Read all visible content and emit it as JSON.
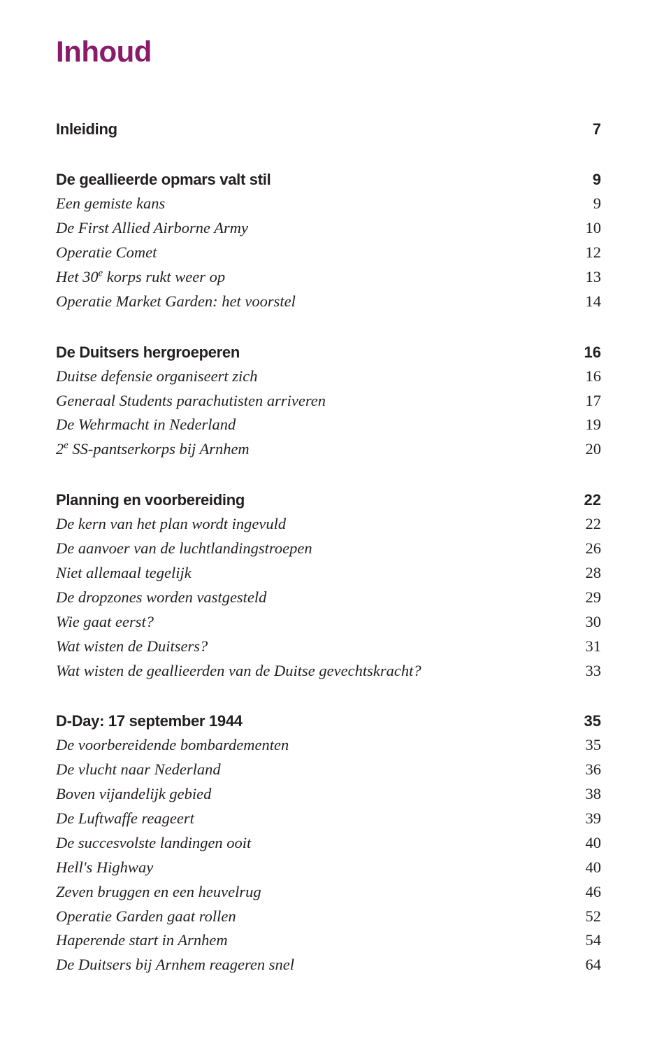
{
  "title": "Inhoud",
  "sections": [
    {
      "chapter": null,
      "entries": [
        {
          "label": "Inleiding",
          "page": "7",
          "bold": true
        }
      ]
    },
    {
      "chapter": {
        "label": "De geallieerde opmars valt stil",
        "page": "9"
      },
      "entries": [
        {
          "label": "Een gemiste kans",
          "page": "9"
        },
        {
          "label": "De First Allied Airborne Army",
          "page": "10"
        },
        {
          "label": "Operatie Comet",
          "page": "12"
        },
        {
          "label_html": "Het 30<sup>e</sup> korps rukt weer op",
          "page": "13"
        },
        {
          "label": "Operatie Market Garden: het voorstel",
          "page": "14"
        }
      ]
    },
    {
      "chapter": {
        "label": "De Duitsers hergroeperen",
        "page": "16"
      },
      "entries": [
        {
          "label": "Duitse defensie organiseert zich",
          "page": "16"
        },
        {
          "label": "Generaal Students parachutisten arriveren",
          "page": "17"
        },
        {
          "label": "De Wehrmacht in Nederland",
          "page": "19"
        },
        {
          "label_html": "2<sup>e</sup> SS-pantserkorps bij Arnhem",
          "page": "20"
        }
      ]
    },
    {
      "chapter": {
        "label": "Planning en voorbereiding",
        "page": "22"
      },
      "entries": [
        {
          "label": "De kern van het plan wordt ingevuld",
          "page": "22"
        },
        {
          "label": "De aanvoer van de luchtlandingstroepen",
          "page": "26"
        },
        {
          "label": "Niet allemaal tegelijk",
          "page": "28"
        },
        {
          "label": "De dropzones worden vastgesteld",
          "page": "29"
        },
        {
          "label": "Wie gaat eerst?",
          "page": "30"
        },
        {
          "label": "Wat wisten de Duitsers?",
          "page": "31"
        },
        {
          "label": "Wat wisten de geallieerden van de Duitse gevechtskracht?",
          "page": "33"
        }
      ]
    },
    {
      "chapter": {
        "label": "D-Day: 17 september 1944",
        "page": "35"
      },
      "entries": [
        {
          "label": "De voorbereidende bombardementen",
          "page": "35"
        },
        {
          "label": "De vlucht naar Nederland",
          "page": "36"
        },
        {
          "label": "Boven vijandelijk gebied",
          "page": "38"
        },
        {
          "label": "De Luftwaffe reageert",
          "page": "39"
        },
        {
          "label": "De succesvolste landingen ooit",
          "page": "40"
        },
        {
          "label": "Hell's Highway",
          "page": "40"
        },
        {
          "label": "Zeven bruggen en een heuvelrug",
          "page": "46"
        },
        {
          "label": "Operatie Garden gaat rollen",
          "page": "52"
        },
        {
          "label": "Haperende start in Arnhem",
          "page": "54"
        },
        {
          "label": "De Duitsers bij Arnhem reageren snel",
          "page": "64"
        }
      ]
    }
  ]
}
